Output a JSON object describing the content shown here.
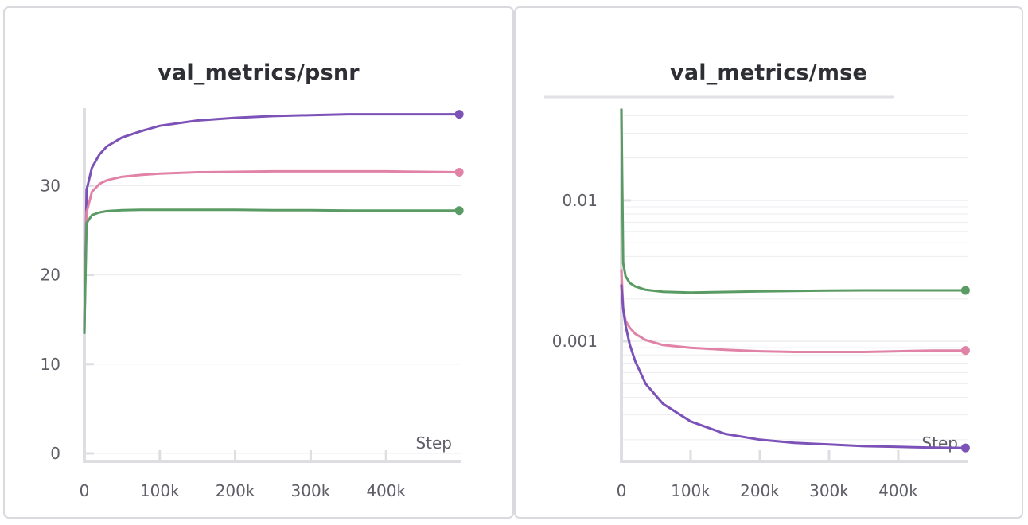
{
  "chart_data": [
    {
      "type": "line",
      "title": "val_metrics/psnr",
      "xlabel": "Step",
      "ylabel": "",
      "x_ticks": [
        0,
        100000,
        200000,
        300000,
        400000
      ],
      "x_tick_labels": [
        "0",
        "100k",
        "200k",
        "300k",
        "400k"
      ],
      "y_ticks": [
        0,
        10,
        20,
        30
      ],
      "y_tick_labels": [
        "0",
        "10",
        "20",
        "30"
      ],
      "xlim": [
        0,
        500000
      ],
      "ylim": [
        0,
        38.5
      ],
      "y_scale": "linear",
      "grid": true,
      "series": [
        {
          "color": "#7c52b8",
          "x": [
            0,
            3000,
            10000,
            20000,
            30000,
            50000,
            75000,
            100000,
            150000,
            200000,
            250000,
            300000,
            350000,
            400000,
            450000,
            497000
          ],
          "y": [
            13.5,
            29.5,
            32.0,
            33.5,
            34.4,
            35.4,
            36.1,
            36.7,
            37.3,
            37.6,
            37.8,
            37.9,
            38.0,
            38.0,
            38.0,
            38.0
          ]
        },
        {
          "color": "#e083a6",
          "x": [
            0,
            3000,
            10000,
            20000,
            30000,
            50000,
            75000,
            100000,
            150000,
            200000,
            250000,
            300000,
            350000,
            400000,
            450000,
            497000
          ],
          "y": [
            14.5,
            27.0,
            29.3,
            30.2,
            30.6,
            31.0,
            31.2,
            31.35,
            31.5,
            31.55,
            31.6,
            31.6,
            31.6,
            31.6,
            31.55,
            31.5
          ]
        },
        {
          "color": "#5a9b64",
          "x": [
            0,
            3000,
            10000,
            20000,
            30000,
            50000,
            75000,
            100000,
            150000,
            200000,
            250000,
            300000,
            350000,
            400000,
            450000,
            497000
          ],
          "y": [
            13.5,
            25.8,
            26.7,
            27.0,
            27.15,
            27.25,
            27.3,
            27.3,
            27.3,
            27.3,
            27.25,
            27.25,
            27.2,
            27.2,
            27.2,
            27.2
          ]
        }
      ]
    },
    {
      "type": "line",
      "title": "val_metrics/mse",
      "xlabel": "Step",
      "ylabel": "",
      "x_ticks": [
        0,
        100000,
        200000,
        300000,
        400000
      ],
      "x_tick_labels": [
        "0",
        "100k",
        "200k",
        "300k",
        "400k"
      ],
      "y_ticks": [
        0.001,
        0.01
      ],
      "y_tick_labels": [
        "0.001",
        "0.01"
      ],
      "xlim": [
        0,
        500000
      ],
      "ylim": [
        0.00016,
        0.044
      ],
      "y_scale": "log",
      "grid": true,
      "series": [
        {
          "color": "#5a9b64",
          "x": [
            0,
            2500,
            6000,
            12000,
            20000,
            35000,
            60000,
            100000,
            150000,
            200000,
            250000,
            300000,
            350000,
            400000,
            450000,
            497000
          ],
          "y": [
            0.044,
            0.0036,
            0.0029,
            0.0026,
            0.00245,
            0.00232,
            0.00225,
            0.00222,
            0.00224,
            0.00226,
            0.00228,
            0.00229,
            0.0023,
            0.0023,
            0.0023,
            0.0023
          ]
        },
        {
          "color": "#e083a6",
          "x": [
            0,
            2500,
            6000,
            12000,
            20000,
            35000,
            60000,
            100000,
            150000,
            200000,
            250000,
            300000,
            350000,
            400000,
            450000,
            497000
          ],
          "y": [
            0.0032,
            0.0017,
            0.0014,
            0.00125,
            0.00113,
            0.00102,
            0.00094,
            0.0009,
            0.00087,
            0.00085,
            0.00084,
            0.00084,
            0.00084,
            0.00085,
            0.00086,
            0.00086
          ]
        },
        {
          "color": "#7c52b8",
          "x": [
            0,
            2500,
            6000,
            12000,
            20000,
            35000,
            60000,
            100000,
            150000,
            200000,
            250000,
            300000,
            350000,
            400000,
            450000,
            497000
          ],
          "y": [
            0.0025,
            0.0017,
            0.0013,
            0.00095,
            0.00072,
            0.0005,
            0.00036,
            0.00027,
            0.00022,
            0.0002,
            0.00019,
            0.000185,
            0.00018,
            0.000178,
            0.000176,
            0.000175
          ]
        }
      ]
    }
  ]
}
